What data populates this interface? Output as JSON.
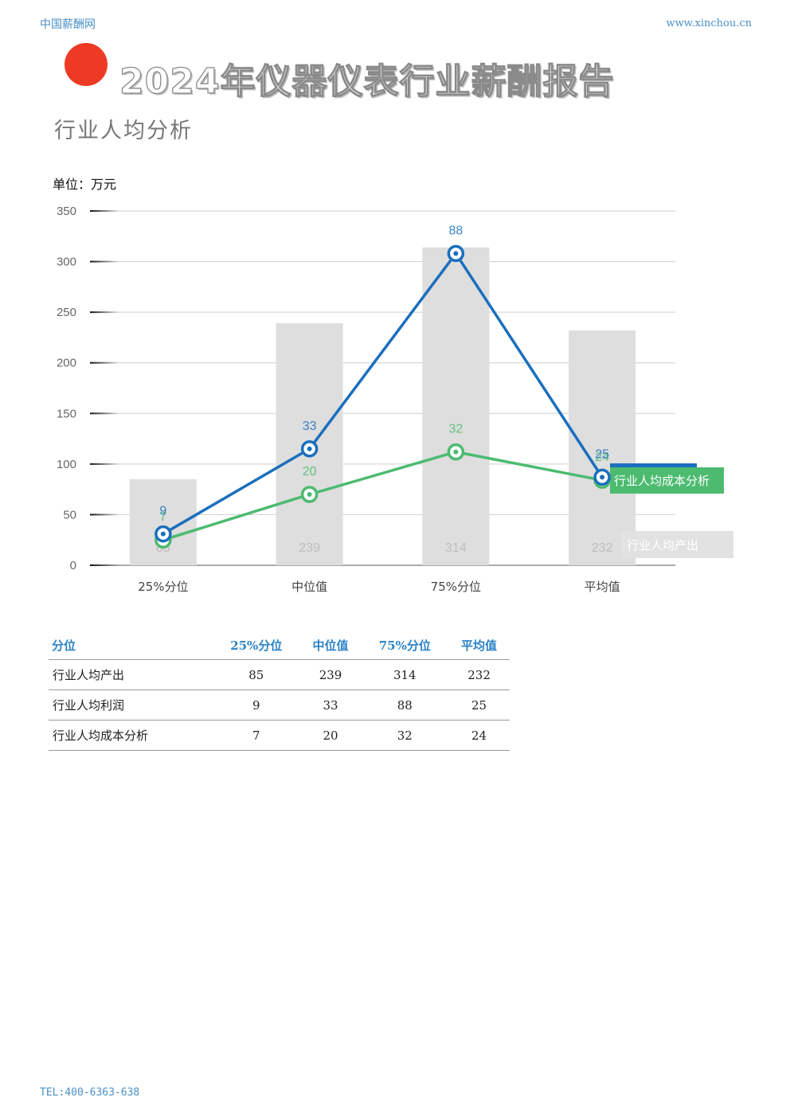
{
  "header": {
    "site": "中国薪酬网",
    "url": "www.xinchou.cn"
  },
  "title": "2024年仪器仪表行业薪酬报告",
  "subtitle": "行业人均分析",
  "unit_label": "单位：万元",
  "colors": {
    "bar": "#dedede",
    "profit": "#1a6fbd",
    "cost": "#4cbb70",
    "accent": "#ee3a24",
    "link": "#4a90c8"
  },
  "chart_data": {
    "type": "bar",
    "categories": [
      "25%分位",
      "中位值",
      "75%分位",
      "平均值"
    ],
    "ylim": [
      0,
      350
    ],
    "yticks": [
      0,
      50,
      100,
      150,
      200,
      250,
      300,
      350
    ],
    "grid": true,
    "series": [
      {
        "name": "行业人均产出",
        "type": "bar",
        "values": [
          85,
          239,
          314,
          232
        ],
        "data_labels": [
          "85",
          "239",
          "314",
          "232"
        ]
      },
      {
        "name": "行业人均利润",
        "type": "line",
        "values": [
          31,
          115,
          308,
          87
        ],
        "data_labels": [
          "9",
          "33",
          "88",
          "25"
        ]
      },
      {
        "name": "行业人均成本分析",
        "type": "line",
        "values": [
          25,
          70,
          112,
          84
        ],
        "data_labels": [
          "7",
          "20",
          "32",
          "24"
        ]
      }
    ]
  },
  "table": {
    "headers": [
      "分位",
      "25%分位",
      "中位值",
      "75%分位",
      "平均值"
    ],
    "rows": [
      [
        "行业人均产出",
        "85",
        "239",
        "314",
        "232"
      ],
      [
        "行业人均利润",
        "9",
        "33",
        "88",
        "25"
      ],
      [
        "行业人均成本分析",
        "7",
        "20",
        "32",
        "24"
      ]
    ]
  },
  "footer": "TEL:400-6363-638"
}
